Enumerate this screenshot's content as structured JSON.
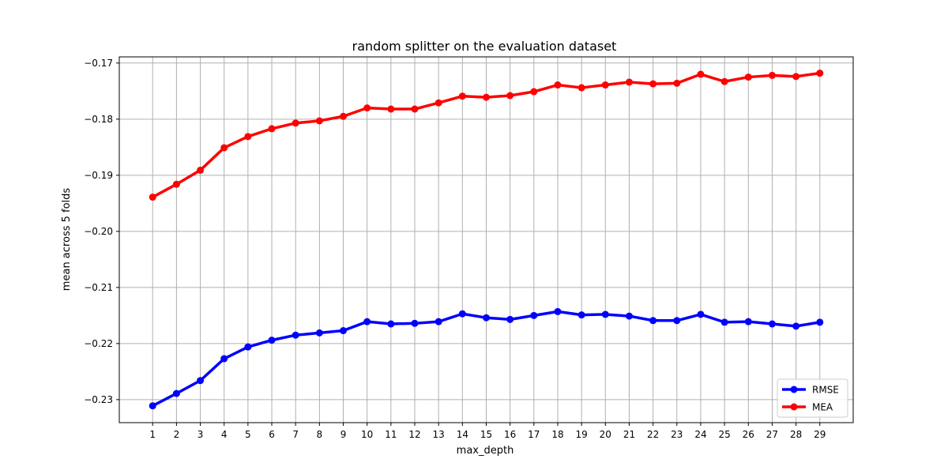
{
  "chart_data": {
    "type": "line",
    "title": "random splitter on the evaluation dataset",
    "xlabel": "max_depth",
    "ylabel": "mean across 5 folds",
    "x": [
      1,
      2,
      3,
      4,
      5,
      6,
      7,
      8,
      9,
      10,
      11,
      12,
      13,
      14,
      15,
      16,
      17,
      18,
      19,
      20,
      21,
      22,
      23,
      24,
      25,
      26,
      27,
      28,
      29
    ],
    "xlim": [
      -0.4,
      30.4
    ],
    "ylim": [
      -0.2341,
      -0.1689
    ],
    "yticks": [
      -0.17,
      -0.18,
      -0.19,
      -0.2,
      -0.21,
      -0.22,
      -0.23
    ],
    "ytick_labels": [
      "−0.17",
      "−0.18",
      "−0.19",
      "−0.20",
      "−0.21",
      "−0.22",
      "−0.23"
    ],
    "grid": true,
    "legend_position": "lower-right",
    "series": [
      {
        "name": "RMSE",
        "color": "#0000ff",
        "marker": "circle",
        "values": [
          -0.2311,
          -0.2289,
          -0.2266,
          -0.2227,
          -0.2206,
          -0.2194,
          -0.2185,
          -0.2181,
          -0.2177,
          -0.2161,
          -0.2165,
          -0.2164,
          -0.2161,
          -0.2147,
          -0.2154,
          -0.2157,
          -0.215,
          -0.2143,
          -0.2149,
          -0.2148,
          -0.2151,
          -0.2159,
          -0.2159,
          -0.2148,
          -0.2162,
          -0.2161,
          -0.2165,
          -0.2169,
          -0.2162
        ]
      },
      {
        "name": "MEA",
        "color": "#ff0000",
        "marker": "circle",
        "values": [
          -0.1939,
          -0.1916,
          -0.1891,
          -0.1851,
          -0.1831,
          -0.1817,
          -0.1807,
          -0.1803,
          -0.1795,
          -0.178,
          -0.1782,
          -0.1782,
          -0.1771,
          -0.1759,
          -0.1761,
          -0.1758,
          -0.1751,
          -0.1739,
          -0.1744,
          -0.1739,
          -0.1734,
          -0.1737,
          -0.1736,
          -0.172,
          -0.1733,
          -0.1725,
          -0.1722,
          -0.1724,
          -0.1718
        ]
      }
    ]
  }
}
